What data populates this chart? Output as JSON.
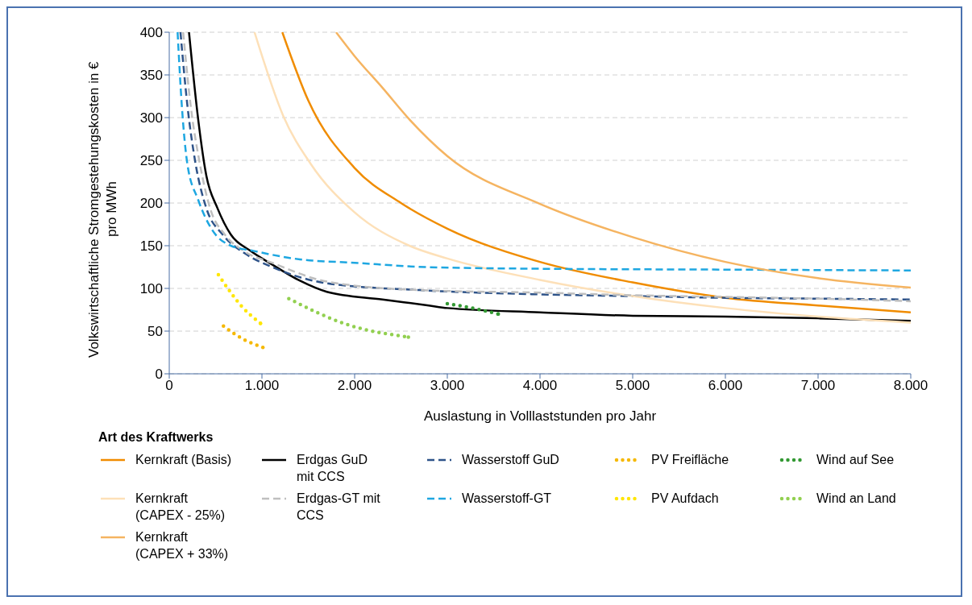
{
  "chart_data": {
    "type": "line",
    "xlabel": "Auslastung in Volllaststunden pro Jahr",
    "ylabel": "Volkswirtschaftliche Stromgestehungskosten in € pro MWh",
    "legend_title": "Art des Kraftwerks",
    "xlim": [
      0,
      8000
    ],
    "xticks": [
      0,
      {
        "value": 1000,
        "label": "1.000"
      },
      {
        "value": 2000,
        "label": "2.000"
      },
      {
        "value": 3000,
        "label": "3.000"
      },
      {
        "value": 4000,
        "label": "4.000"
      },
      {
        "value": 5000,
        "label": "5.000"
      },
      {
        "value": 6000,
        "label": "6.000"
      },
      {
        "value": 7000,
        "label": "7.000"
      },
      {
        "value": 8000,
        "label": "8.000"
      }
    ],
    "ylim": [
      0,
      400
    ],
    "yticks": [
      0,
      50,
      100,
      150,
      200,
      250,
      300,
      350,
      400
    ],
    "grid": "y",
    "legend": "bottom",
    "marker": "none",
    "series": [
      {
        "name": "Kernkraft (Basis)",
        "color": "#f08c00",
        "line_style": "solid",
        "x": [
          1220,
          1500,
          2000,
          2500,
          3000,
          4000,
          5000,
          6000,
          7000,
          8000
        ],
        "values": [
          400,
          320,
          241,
          200,
          170,
          131,
          107,
          89,
          80,
          72
        ]
      },
      {
        "name": "Erdgas GuD mit CCS",
        "color": "#000000",
        "line_style": "solid",
        "x": [
          213,
          311,
          400,
          520,
          665,
          875,
          1110,
          1410,
          1700,
          2300,
          2800,
          3000,
          4000,
          5000,
          6000,
          7000,
          8000
        ],
        "values": [
          400,
          299,
          232,
          194,
          163,
          144,
          128,
          109,
          96,
          87,
          80,
          77,
          72,
          68,
          67,
          65,
          62
        ]
      },
      {
        "name": "Wasserstoff GuD",
        "color": "#2e5389",
        "line_style": "dashed",
        "x": [
          121,
          195,
          284,
          400,
          577,
          816,
          1110,
          1700,
          2700,
          4000,
          5000,
          6000,
          7000,
          8000
        ],
        "values": [
          400,
          315,
          246,
          194,
          163,
          141,
          125,
          106,
          98,
          93,
          91,
          89,
          88,
          87
        ]
      },
      {
        "name": "PV Freifläche",
        "color": "#f5b800",
        "line_style": "dotted",
        "x": [
          585,
          790,
          1010
        ],
        "values": [
          56,
          41,
          31
        ]
      },
      {
        "name": "Wind auf See",
        "color": "#339933",
        "line_style": "dotted",
        "x": [
          3000,
          3270,
          3550
        ],
        "values": [
          82,
          77,
          70
        ]
      },
      {
        "name": "Kernkraft (CAPEX - 25%)",
        "color": "#fde0b8",
        "line_style": "solid",
        "x": [
          920,
          1230,
          1525,
          2000,
          2590,
          3000,
          4000,
          5000,
          6000,
          7000,
          8000
        ],
        "values": [
          400,
          302,
          246,
          189,
          150,
          135,
          110,
          91,
          77,
          67,
          60
        ]
      },
      {
        "name": "Erdgas-GT mit CCS",
        "color": "#bfbfbf",
        "line_style": "dashed",
        "x": [
          150,
          230,
          330,
          440,
          600,
          816,
          1110,
          1700,
          2700,
          4000,
          5000,
          6000,
          7000,
          8000
        ],
        "values": [
          400,
          315,
          246,
          194,
          163,
          143,
          130,
          108,
          98,
          95,
          92,
          90,
          88,
          85
        ]
      },
      {
        "name": "Wasserstoff-GT",
        "color": "#1ea7e1",
        "line_style": "dashed",
        "x": [
          90,
          135,
          195,
          311,
          460,
          665,
          905,
          1410,
          2000,
          2767,
          4000,
          6000,
          8000
        ],
        "values": [
          400,
          315,
          246,
          204,
          169,
          150,
          144,
          134,
          130,
          125,
          123,
          122,
          121
        ]
      },
      {
        "name": "PV Aufdach",
        "color": "#ffe600",
        "line_style": "dotted",
        "x": [
          530,
          790,
          985
        ],
        "values": [
          116,
          78,
          59
        ]
      },
      {
        "name": "Wind an Land",
        "color": "#92d050",
        "line_style": "dotted",
        "x": [
          1290,
          1910,
          2580
        ],
        "values": [
          88,
          58,
          43
        ]
      },
      {
        "name": "Kernkraft (CAPEX + 33%)",
        "color": "#f5b461",
        "line_style": "solid",
        "x": [
          1800,
          2000,
          2300,
          2590,
          3000,
          4000,
          5000,
          6000,
          7000,
          8000
        ],
        "values": [
          400,
          372,
          335,
          298,
          255,
          199,
          160,
          131,
          112,
          101
        ]
      }
    ]
  }
}
